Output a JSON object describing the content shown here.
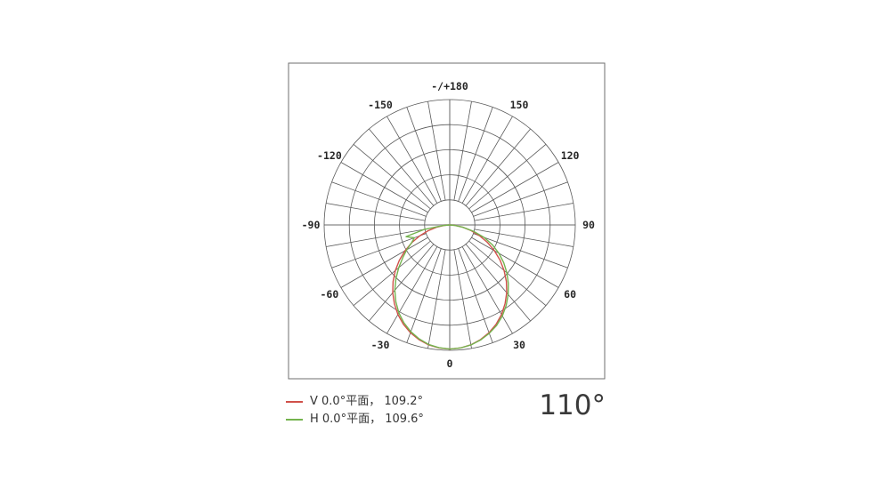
{
  "chart_data": {
    "type": "line",
    "subtype": "polar-photometric",
    "title": "",
    "angle_unit": "deg",
    "radial_axis": {
      "min": 0,
      "max": 1.0,
      "rings": 5,
      "tick_labels_shown": false
    },
    "grid": {
      "spoke_step_deg": 10,
      "label_step_deg": 30,
      "line_color": "#585858",
      "axis_color": "#b4b4b4",
      "frame_color": "#6f6f6f",
      "label_color": "#262626"
    },
    "angle_labels": [
      {
        "angle": 180,
        "label": "-/+180"
      },
      {
        "angle": 150,
        "label": "150"
      },
      {
        "angle": 120,
        "label": "120"
      },
      {
        "angle": 90,
        "label": "90"
      },
      {
        "angle": 60,
        "label": "60"
      },
      {
        "angle": 30,
        "label": "30"
      },
      {
        "angle": 0,
        "label": "0"
      },
      {
        "angle": -30,
        "label": "-30"
      },
      {
        "angle": -60,
        "label": "-60"
      },
      {
        "angle": -90,
        "label": "-90"
      },
      {
        "angle": -120,
        "label": "-120"
      },
      {
        "angle": -150,
        "label": "-150"
      }
    ],
    "series": [
      {
        "name": "V 0.0°平面， 109.2°",
        "color": "#d0514a",
        "points": [
          [
            -90,
            0
          ],
          [
            -85,
            0.045
          ],
          [
            -80,
            0.107
          ],
          [
            -75,
            0.178
          ],
          [
            -70,
            0.254
          ],
          [
            -65,
            0.332
          ],
          [
            -60,
            0.411
          ],
          [
            -55,
            0.489
          ],
          [
            -50,
            0.565
          ],
          [
            -45,
            0.638
          ],
          [
            -40,
            0.706
          ],
          [
            -35,
            0.768
          ],
          [
            -30,
            0.825
          ],
          [
            -25,
            0.874
          ],
          [
            -20,
            0.915
          ],
          [
            -15,
            0.947
          ],
          [
            -10,
            0.971
          ],
          [
            -5,
            0.985
          ],
          [
            0,
            0.99
          ],
          [
            5,
            0.985
          ],
          [
            10,
            0.971
          ],
          [
            15,
            0.947
          ],
          [
            20,
            0.915
          ],
          [
            25,
            0.874
          ],
          [
            30,
            0.825
          ],
          [
            35,
            0.768
          ],
          [
            40,
            0.706
          ],
          [
            45,
            0.638
          ],
          [
            50,
            0.565
          ],
          [
            55,
            0.489
          ],
          [
            60,
            0.411
          ],
          [
            65,
            0.332
          ],
          [
            70,
            0.254
          ],
          [
            75,
            0.178
          ],
          [
            80,
            0.107
          ],
          [
            85,
            0.045
          ],
          [
            90,
            0
          ]
        ]
      },
      {
        "name": "H 0.0°平面， 109.6°",
        "color": "#74b34e",
        "points": [
          [
            -90,
            0
          ],
          [
            -85,
            0.055
          ],
          [
            -80,
            0.205
          ],
          [
            -75,
            0.36
          ],
          [
            -70,
            0.3
          ],
          [
            -65,
            0.335
          ],
          [
            -60,
            0.395
          ],
          [
            -55,
            0.457
          ],
          [
            -50,
            0.53
          ],
          [
            -45,
            0.606
          ],
          [
            -40,
            0.68
          ],
          [
            -35,
            0.748
          ],
          [
            -30,
            0.81
          ],
          [
            -25,
            0.862
          ],
          [
            -20,
            0.906
          ],
          [
            -15,
            0.941
          ],
          [
            -10,
            0.968
          ],
          [
            -5,
            0.983
          ],
          [
            0,
            0.99
          ],
          [
            5,
            0.985
          ],
          [
            10,
            0.972
          ],
          [
            15,
            0.95
          ],
          [
            20,
            0.92
          ],
          [
            25,
            0.884
          ],
          [
            30,
            0.838
          ],
          [
            35,
            0.784
          ],
          [
            40,
            0.724
          ],
          [
            45,
            0.66
          ],
          [
            50,
            0.594
          ],
          [
            55,
            0.525
          ],
          [
            60,
            0.452
          ],
          [
            65,
            0.375
          ],
          [
            70,
            0.292
          ],
          [
            75,
            0.196
          ],
          [
            80,
            0.105
          ],
          [
            85,
            0.042
          ],
          [
            90,
            0
          ]
        ]
      }
    ],
    "beam_angle_label": "110°"
  }
}
